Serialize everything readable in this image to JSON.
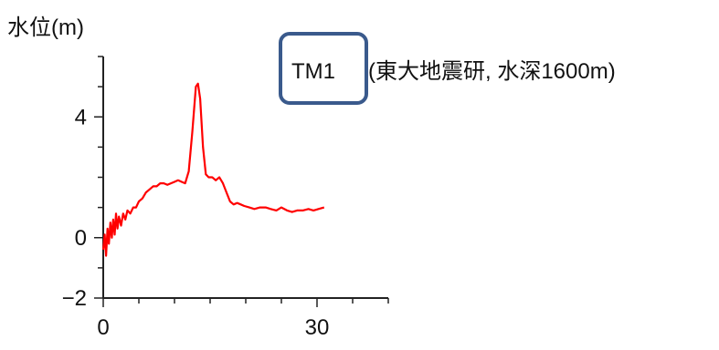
{
  "chart_data": {
    "type": "line",
    "ylabel": "水位(m)",
    "station": "TM1",
    "station_note": "(東大地震研, 水深1600m)",
    "x_ticks": [
      0,
      30
    ],
    "y_ticks": [
      -2,
      0,
      4
    ],
    "xlim": [
      0,
      40
    ],
    "ylim": [
      -2,
      6
    ],
    "grid": false,
    "colors": {
      "line": "#ff0000",
      "label_box": "#3a5a8c",
      "axis": "#222222"
    },
    "series": [
      {
        "values": [
          [
            0,
            -0.4
          ],
          [
            0.2,
            0.1
          ],
          [
            0.4,
            -0.6
          ],
          [
            0.6,
            0.3
          ],
          [
            0.8,
            -0.2
          ],
          [
            1.0,
            0.5
          ],
          [
            1.2,
            0.0
          ],
          [
            1.4,
            0.6
          ],
          [
            1.6,
            0.1
          ],
          [
            1.8,
            0.8
          ],
          [
            2.0,
            0.3
          ],
          [
            2.2,
            0.7
          ],
          [
            2.5,
            0.4
          ],
          [
            2.8,
            0.8
          ],
          [
            3.1,
            0.6
          ],
          [
            3.4,
            0.9
          ],
          [
            3.8,
            0.8
          ],
          [
            4.2,
            1.0
          ],
          [
            4.6,
            1.0
          ],
          [
            5.0,
            1.2
          ],
          [
            5.5,
            1.3
          ],
          [
            6.0,
            1.5
          ],
          [
            6.5,
            1.6
          ],
          [
            7.0,
            1.7
          ],
          [
            7.5,
            1.7
          ],
          [
            8.0,
            1.8
          ],
          [
            8.5,
            1.8
          ],
          [
            9.0,
            1.75
          ],
          [
            9.5,
            1.8
          ],
          [
            10.0,
            1.85
          ],
          [
            10.5,
            1.9
          ],
          [
            11.0,
            1.85
          ],
          [
            11.5,
            1.8
          ],
          [
            12.0,
            2.2
          ],
          [
            12.5,
            3.5
          ],
          [
            13.0,
            5.0
          ],
          [
            13.3,
            5.1
          ],
          [
            13.6,
            4.6
          ],
          [
            14.0,
            3.0
          ],
          [
            14.4,
            2.1
          ],
          [
            14.8,
            2.0
          ],
          [
            15.3,
            2.0
          ],
          [
            15.8,
            1.9
          ],
          [
            16.3,
            2.0
          ],
          [
            16.8,
            1.8
          ],
          [
            17.3,
            1.5
          ],
          [
            17.8,
            1.2
          ],
          [
            18.3,
            1.1
          ],
          [
            18.8,
            1.15
          ],
          [
            19.3,
            1.1
          ],
          [
            19.8,
            1.05
          ],
          [
            20.5,
            1.0
          ],
          [
            21.2,
            0.95
          ],
          [
            22.0,
            1.0
          ],
          [
            22.8,
            1.0
          ],
          [
            23.5,
            0.95
          ],
          [
            24.3,
            0.9
          ],
          [
            25.0,
            1.0
          ],
          [
            25.8,
            0.9
          ],
          [
            26.5,
            0.85
          ],
          [
            27.2,
            0.9
          ],
          [
            28.0,
            0.9
          ],
          [
            28.8,
            0.95
          ],
          [
            29.5,
            0.9
          ],
          [
            30.2,
            0.95
          ],
          [
            31.0,
            1.0
          ]
        ]
      }
    ]
  }
}
